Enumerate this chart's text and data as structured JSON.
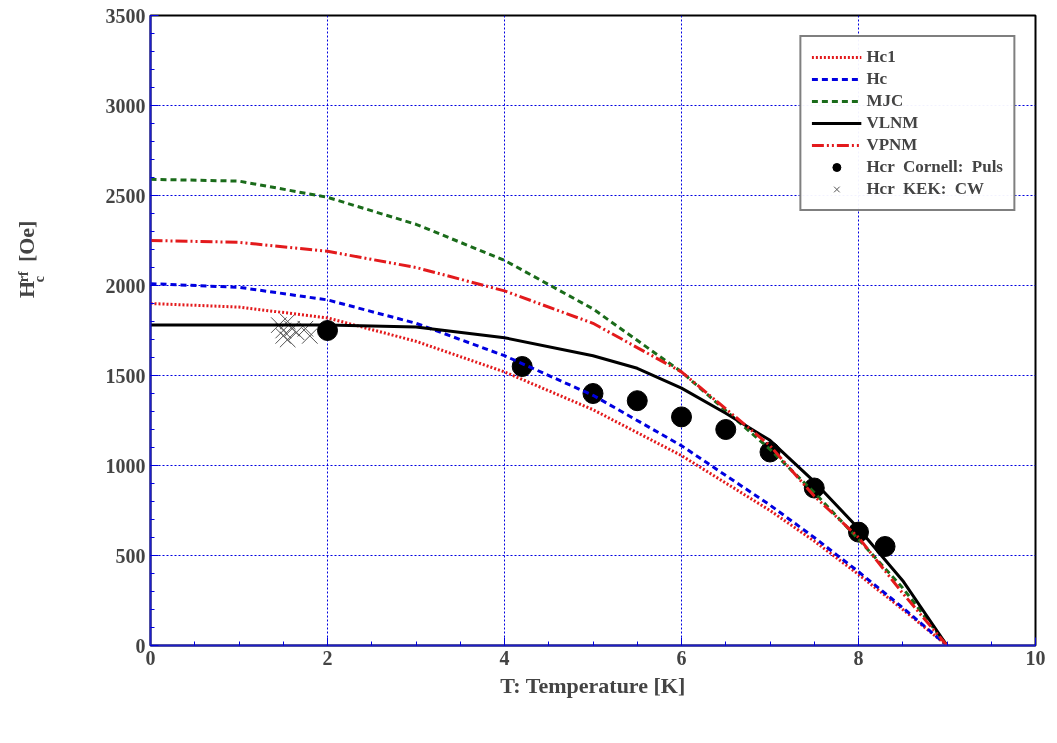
{
  "chart_data": {
    "type": "line",
    "xlabel": "T: Temperature [K]",
    "ylabel": "H$_{c}$$^{rf}$ [Oe]",
    "xlim": [
      0,
      10
    ],
    "ylim": [
      0,
      3500
    ],
    "xticks": [
      0,
      2,
      4,
      6,
      8,
      10
    ],
    "yticks": [
      0,
      500,
      1000,
      1500,
      2000,
      2500,
      3000,
      3500
    ],
    "grid": true,
    "legend": "top right",
    "series": [
      {
        "name": "Hc1",
        "color": "#e31a1c",
        "line_style": "dotted",
        "x": [
          0,
          1,
          2,
          3,
          4,
          5,
          6,
          7,
          7.5,
          8,
          8.5,
          9
        ],
        "values": [
          1900,
          1880,
          1820,
          1690,
          1520,
          1310,
          1055,
          750,
          580,
          395,
          200,
          0
        ]
      },
      {
        "name": "Hc",
        "color": "#0000e0",
        "line_style": "dashed",
        "x": [
          0,
          1,
          2,
          3,
          4,
          5,
          6,
          7,
          7.5,
          8,
          8.5,
          9
        ],
        "values": [
          2010,
          1990,
          1920,
          1790,
          1610,
          1390,
          1110,
          780,
          600,
          410,
          210,
          0
        ]
      },
      {
        "name": "MJC",
        "color": "#1a6b1a",
        "line_style": "dashed",
        "x": [
          0,
          1,
          2,
          3,
          4,
          5,
          6,
          7,
          7.5,
          8,
          8.5,
          9
        ],
        "values": [
          2590,
          2580,
          2490,
          2340,
          2140,
          1870,
          1520,
          1090,
          850,
          590,
          320,
          0
        ]
      },
      {
        "name": "VLNM",
        "color": "#000000",
        "line_style": "solid",
        "x": [
          0,
          1,
          2,
          3,
          4,
          5,
          5.5,
          6,
          6.5,
          7,
          7.5,
          8,
          8.5,
          9
        ],
        "values": [
          1780,
          1780,
          1780,
          1770,
          1710,
          1610,
          1540,
          1430,
          1290,
          1140,
          910,
          650,
          360,
          0
        ]
      },
      {
        "name": "VPNM",
        "color": "#e31a1c",
        "line_style": "dashdot",
        "x": [
          0,
          1,
          2,
          3,
          4,
          5,
          6,
          7,
          7.5,
          8,
          8.5,
          9
        ],
        "values": [
          2250,
          2240,
          2190,
          2100,
          1970,
          1790,
          1520,
          1110,
          830,
          600,
          290,
          0
        ]
      },
      {
        "name": "Hcr  Cornell:  Puls",
        "type": "scatter",
        "marker": "circle",
        "color": "#000000",
        "x": [
          2,
          4.2,
          5,
          5.5,
          6,
          6.5,
          7,
          7.5,
          8,
          8.3
        ],
        "values": [
          1750,
          1550,
          1400,
          1360,
          1270,
          1200,
          1075,
          875,
          630,
          550
        ]
      },
      {
        "name": "Hcr  KEK:  CW",
        "type": "scatter",
        "marker": "cross",
        "color": "#555555",
        "x": [
          1.45,
          1.5,
          1.5,
          1.55,
          1.6,
          1.55,
          1.65,
          1.8,
          1.75
        ],
        "values": [
          1780,
          1750,
          1720,
          1800,
          1760,
          1700,
          1740,
          1720,
          1760
        ]
      }
    ]
  }
}
